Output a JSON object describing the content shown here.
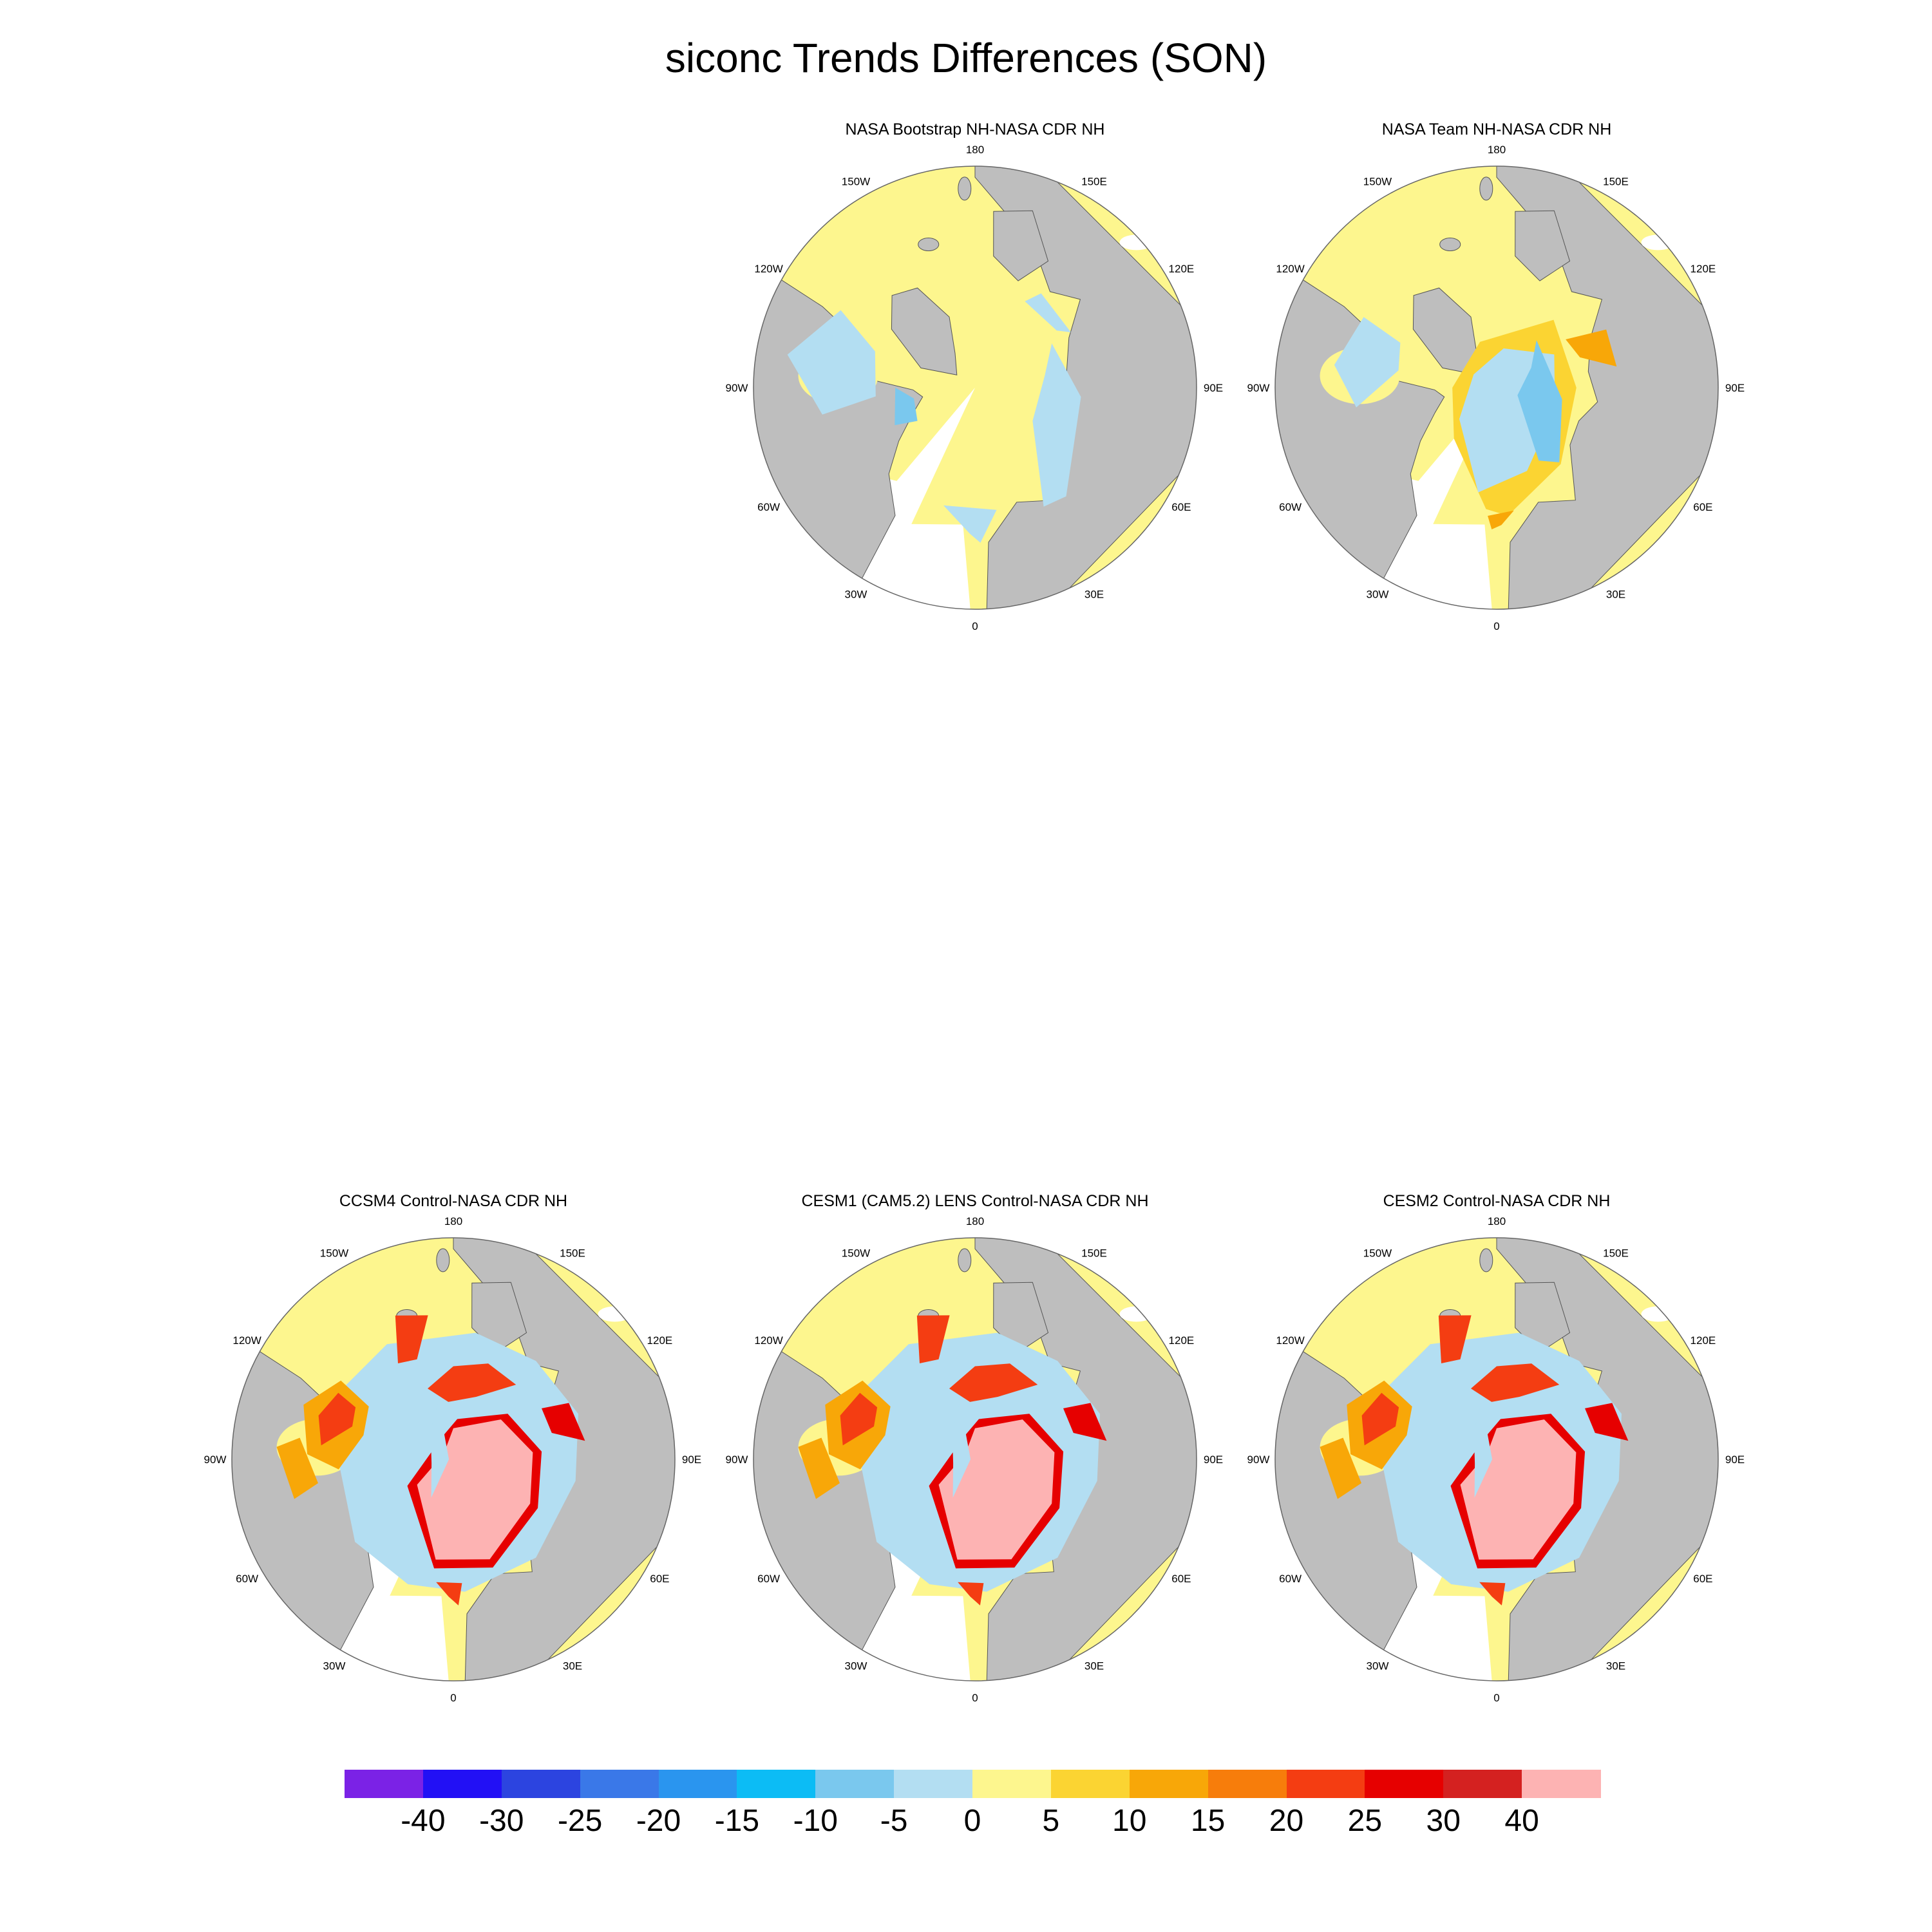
{
  "title": "siconc Trends Differences (SON)",
  "longitude_labels": [
    "180",
    "150E",
    "120E",
    "90E",
    "60E",
    "30E",
    "0",
    "30W",
    "60W",
    "90W",
    "120W",
    "150W"
  ],
  "panels": [
    {
      "id": "bootstrap",
      "title": "NASA Bootstrap NH-NASA CDR NH",
      "pattern": "small-negative"
    },
    {
      "id": "team",
      "title": "NASA Team NH-NASA CDR NH",
      "pattern": "mixed"
    },
    {
      "id": "ccsm4",
      "title": "CCSM4 Control-NASA CDR NH",
      "pattern": "strong-positive"
    },
    {
      "id": "cesm1",
      "title": "CESM1 (CAM5.2) LENS Control-NASA CDR NH",
      "pattern": "strong-positive"
    },
    {
      "id": "cesm2",
      "title": "CESM2 Control-NASA CDR NH",
      "pattern": "strong-positive"
    }
  ],
  "colorbar": {
    "labels": [
      "-40",
      "-30",
      "-25",
      "-20",
      "-15",
      "-10",
      "-5",
      "0",
      "5",
      "10",
      "15",
      "20",
      "25",
      "30",
      "40"
    ],
    "colors": [
      "#7b22e6",
      "#2210f5",
      "#2c44e0",
      "#3a78e8",
      "#2a95ef",
      "#0cbcf5",
      "#7ac8ee",
      "#b3def2",
      "#fdf68e",
      "#fbd432",
      "#f8a708",
      "#f77d0b",
      "#f43d12",
      "#e60000",
      "#d42120",
      "#fdb3b3"
    ]
  },
  "map_colors": {
    "land": "#bebebe",
    "outline": "#555555"
  }
}
